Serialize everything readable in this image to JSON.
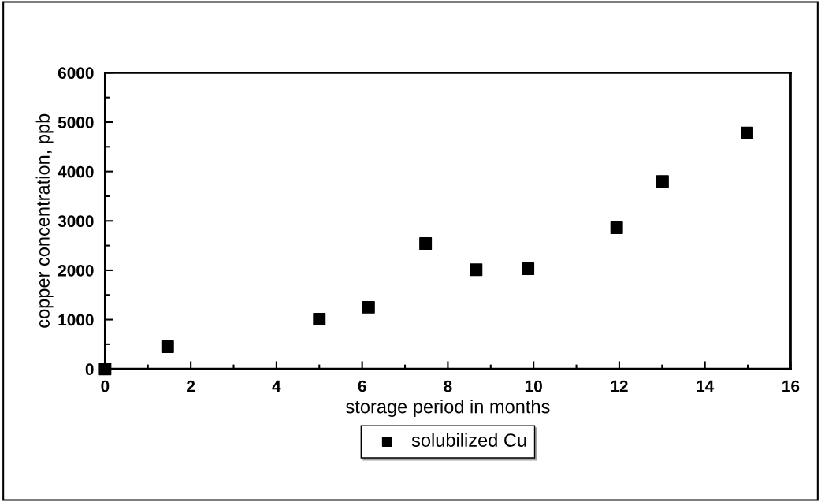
{
  "chart_data": {
    "type": "scatter",
    "xlabel": "storage period in months",
    "ylabel": "copper concentration, ppb",
    "x": [
      0,
      1.46,
      5.0,
      6.15,
      7.48,
      8.66,
      9.87,
      11.94,
      13.01,
      14.98
    ],
    "series": [
      {
        "name": "solubilized Cu",
        "color": "#000000",
        "values": [
          0,
          450,
          1010,
          1250,
          2540,
          2010,
          2030,
          2860,
          3800,
          4780
        ]
      }
    ],
    "xlim": [
      0,
      16
    ],
    "xticks": [
      0,
      2,
      4,
      6,
      8,
      10,
      12,
      14,
      16
    ],
    "ylim": [
      0,
      6000
    ],
    "yticks": [
      0,
      1000,
      2000,
      3000,
      4000,
      5000,
      6000
    ],
    "marker": "square",
    "grid": false,
    "legend": "bottom"
  }
}
